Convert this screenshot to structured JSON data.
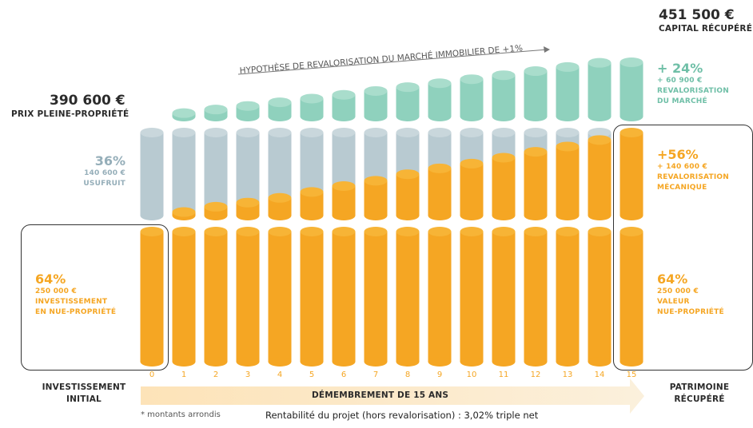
{
  "top_right": {
    "amount": "451 500 €",
    "label": "CAPITAL RÉCUPÉRÉ"
  },
  "top_left": {
    "amount": "390 600 €",
    "label": "PRIX PLEINE-PROPRIÉTÉ"
  },
  "hypothesis": "HYPOTHÈSE DE REVALORISATION DU MARCHÉ IMMOBILIER DE +1%",
  "left_usufruit": {
    "pct": "36%",
    "amount": "140 600 €",
    "label": "USUFRUIT"
  },
  "left_nue": {
    "pct": "64%",
    "amount": "250 000 €",
    "label1": "INVESTISSEMENT",
    "label2": "EN NUE-PROPRIÉTÉ"
  },
  "right_market": {
    "pct": "+ 24%",
    "amount": "+ 60 900 €",
    "label1": "REVALORISATION",
    "label2": "DU MARCHÉ"
  },
  "right_meca": {
    "pct": "+56%",
    "amount": "+ 140 600 €",
    "label1": "REVALORISATION",
    "label2": "MÉCANIQUE"
  },
  "right_nue": {
    "pct": "64%",
    "amount": "250 000 €",
    "label1": "VALEUR",
    "label2": "NUE-PROPRIÉTÉ"
  },
  "bottom": {
    "left1": "INVESTISSEMENT",
    "left2": "INITIAL",
    "arrow": "DÉMEMBREMENT DE 15 ANS",
    "right1": "PATRIMOINE",
    "right2": "RÉCUPÉRÉ",
    "footnote": "* montants arrondis",
    "rentabilite": "Rentabilité du projet (hors revalorisation) : 3,02% triple net"
  },
  "colors": {
    "orange": "#f5a623",
    "grey": "#b8cad1",
    "green": "#8fd1bd"
  },
  "chart_data": {
    "type": "bar",
    "categories": [
      "0",
      "1",
      "2",
      "3",
      "4",
      "5",
      "6",
      "7",
      "8",
      "9",
      "10",
      "11",
      "12",
      "13",
      "14",
      "15"
    ],
    "series": [
      {
        "name": "NUE-PROPRIÉTÉ",
        "values": [
          250000,
          250000,
          250000,
          250000,
          250000,
          250000,
          250000,
          250000,
          250000,
          250000,
          250000,
          250000,
          250000,
          250000,
          250000,
          250000
        ]
      },
      {
        "name": "REVALORISATION MÉCANIQUE",
        "values": [
          0,
          6000,
          15000,
          22000,
          30000,
          40000,
          50000,
          59000,
          70000,
          80000,
          88000,
          98000,
          108000,
          117000,
          128000,
          140600
        ]
      },
      {
        "name": "USUFRUIT",
        "values": [
          140600,
          134600,
          125600,
          118600,
          110600,
          100600,
          90600,
          81600,
          70600,
          60600,
          52600,
          42600,
          32600,
          23600,
          12600,
          0
        ]
      },
      {
        "name": "REVALORISATION DU MARCHÉ",
        "values": [
          0,
          3900,
          7900,
          11900,
          16000,
          20200,
          24400,
          28700,
          33000,
          37400,
          41900,
          46400,
          51000,
          55600,
          60300,
          60900
        ]
      }
    ]
  }
}
